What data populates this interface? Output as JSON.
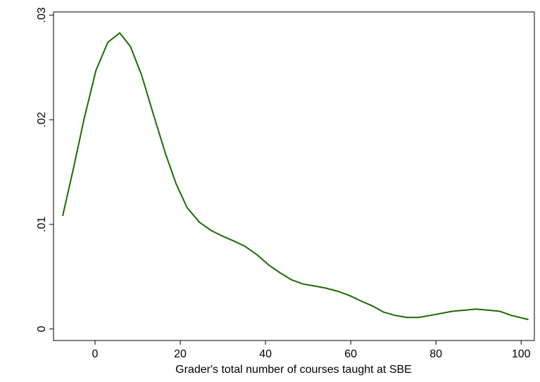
{
  "chart_data": {
    "type": "line",
    "xlabel": "Grader's total number of courses taught at SBE",
    "x": [
      -7.6,
      -5.1,
      -2.5,
      0.2,
      3.0,
      5.8,
      8.3,
      10.9,
      13.7,
      16.5,
      19.0,
      21.6,
      24.5,
      27.3,
      29.8,
      32.6,
      35.2,
      38.0,
      40.8,
      43.3,
      46.1,
      48.8,
      51.6,
      54.2,
      57.0,
      59.7,
      62.3,
      65.1,
      67.8,
      70.4,
      73.2,
      75.9,
      78.7,
      81.3,
      84.0,
      86.8,
      89.4,
      92.2,
      94.9,
      97.7,
      101.7
    ],
    "series": [
      {
        "color": "#1a6b00",
        "values": [
          0.0108,
          0.0153,
          0.0202,
          0.0247,
          0.0274,
          0.0283,
          0.027,
          0.0243,
          0.0205,
          0.0168,
          0.0139,
          0.0116,
          0.0102,
          0.0094,
          0.0089,
          0.0084,
          0.0079,
          0.0071,
          0.0061,
          0.0054,
          0.0047,
          0.0043,
          0.0041,
          0.0039,
          0.0036,
          0.0032,
          0.0027,
          0.0022,
          0.0016,
          0.0013,
          0.0011,
          0.0011,
          0.0013,
          0.0015,
          0.0017,
          0.0018,
          0.0019,
          0.0018,
          0.0017,
          0.0013,
          0.0009
        ]
      }
    ],
    "xlim": [
      -9.75,
      103.1
    ],
    "xticks": [
      0,
      20,
      40,
      60,
      80,
      100
    ],
    "ylim": [
      -0.0011,
      0.0303
    ],
    "yticks": [
      0,
      {
        "value": 0.01,
        "label": ".01"
      },
      {
        "value": 0.02,
        "label": ".02"
      },
      {
        "value": 0.03,
        "label": ".03"
      }
    ],
    "grid": false
  }
}
